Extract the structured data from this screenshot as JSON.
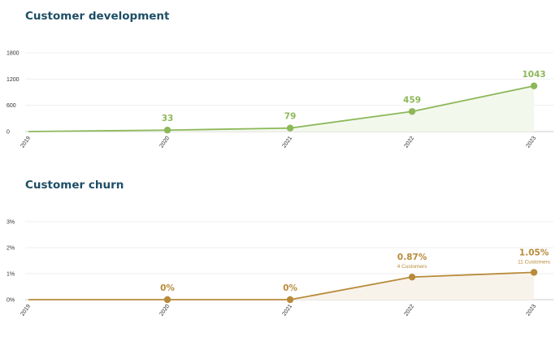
{
  "chart_data": [
    {
      "type": "area",
      "title": "Customer development",
      "color": "#8db85a",
      "fill": "#f3f8ec",
      "categories": [
        "2019",
        "2020",
        "2021",
        "2022",
        "2023"
      ],
      "values": [
        0,
        33,
        79,
        459,
        1043
      ],
      "series": [
        {
          "values": [
            0,
            33,
            79,
            459,
            1043
          ]
        }
      ],
      "point_labels": [
        "",
        "33",
        "79",
        "459",
        "1043"
      ],
      "point_sublabels": [
        "",
        "",
        "",
        "",
        ""
      ],
      "yticks": [
        "0",
        "600",
        "1200",
        "1800"
      ],
      "ytick_values": [
        0,
        600,
        1200,
        1800
      ],
      "ylim": [
        0,
        1800
      ],
      "plot_top": 65,
      "plot_bottom": 162,
      "grid": true
    },
    {
      "type": "area",
      "title": "Customer churn",
      "color": "#b88a3a",
      "fill": "#f8f3ea",
      "categories": [
        "2019",
        "2020",
        "2021",
        "2022",
        "2023"
      ],
      "values": [
        0,
        0,
        0,
        0.87,
        1.05
      ],
      "series": [
        {
          "values": [
            0,
            0,
            0,
            0.87,
            1.05
          ]
        }
      ],
      "point_labels": [
        "",
        "0%",
        "0%",
        "0.87%",
        "1.05%"
      ],
      "point_sublabels": [
        "",
        "",
        "",
        "4 Customers",
        "11 Customers"
      ],
      "yticks": [
        "0%",
        "1%",
        "2%",
        "3%"
      ],
      "ytick_values": [
        0,
        1,
        2,
        3
      ],
      "ylim": [
        0,
        3
      ],
      "plot_top": 273,
      "plot_bottom": 369,
      "grid": true
    }
  ]
}
